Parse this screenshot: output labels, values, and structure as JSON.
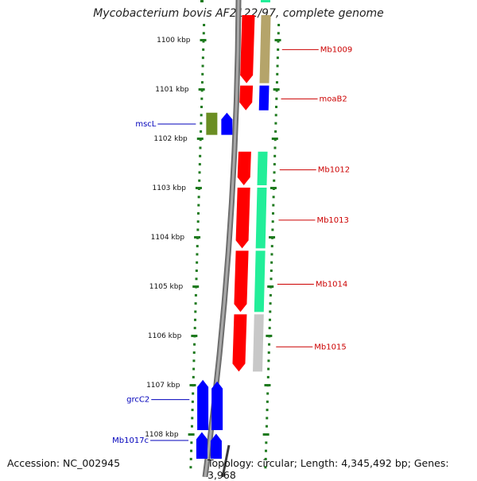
{
  "title": "Mycobacterium bovis AF2122/97, complete genome",
  "footer": {
    "accession": "Accession: NC_002945",
    "stats": "Topology: circular; Length: 4,345,492 bp; Genes: 3,968"
  },
  "colors": {
    "background": "#ffffff",
    "tick": "#1e7a1e",
    "backbone": "#8a8a8a",
    "forward_label": "#cc0000",
    "reverse_label": "#0000bb",
    "red_gene": "#ff0000",
    "blue_gene": "#0000ff",
    "olive_gene": "#6b8e23",
    "tan_block": "#b5a46a",
    "green_block": "#22ee99",
    "gray_block": "#c8c8c8"
  },
  "map": {
    "axis_unit": "kbp",
    "kbp_range": [
      1099.5,
      1108.5
    ],
    "ticks": [
      {
        "kbp": 1100,
        "label": "1100 kbp"
      },
      {
        "kbp": 1101,
        "label": "1101 kbp"
      },
      {
        "kbp": 1102,
        "label": "1102 kbp"
      },
      {
        "kbp": 1103,
        "label": "1103 kbp"
      },
      {
        "kbp": 1104,
        "label": "1104 kbp"
      },
      {
        "kbp": 1105,
        "label": "1105 kbp"
      },
      {
        "kbp": 1106,
        "label": "1106 kbp"
      },
      {
        "kbp": 1107,
        "label": "1107 kbp"
      },
      {
        "kbp": 1108,
        "label": "1108 kbp"
      }
    ],
    "reverse_features": [
      {
        "name": "mscL",
        "label": "mscL",
        "start_kbp": 1101.48,
        "end_kbp": 1101.93,
        "label_kbp": 1101.71
      },
      {
        "name": "grcC2",
        "label": "grcC2",
        "start_kbp": 1106.9,
        "end_kbp": 1107.92,
        "label_kbp": 1107.3
      },
      {
        "name": "Mb1017c",
        "label": "Mb1017c",
        "start_kbp": 1107.96,
        "end_kbp": 1108.5,
        "label_kbp": 1108.13
      }
    ],
    "forward_features": [
      {
        "name": "Mb1009",
        "label": "Mb1009",
        "start_kbp": 1099.5,
        "end_kbp": 1100.93,
        "label_kbp": 1100.2,
        "block": "tan"
      },
      {
        "name": "moaB2",
        "label": "moaB2",
        "start_kbp": 1100.93,
        "end_kbp": 1101.48,
        "label_kbp": 1101.2,
        "block": "blue"
      },
      {
        "name": "Mb1012",
        "label": "Mb1012",
        "start_kbp": 1102.27,
        "end_kbp": 1103.0,
        "label_kbp": 1102.64,
        "block": "green"
      },
      {
        "name": "Mb1013",
        "label": "Mb1013",
        "start_kbp": 1103.0,
        "end_kbp": 1104.28,
        "label_kbp": 1103.66,
        "block": "green"
      },
      {
        "name": "Mb1014",
        "label": "Mb1014",
        "start_kbp": 1104.28,
        "end_kbp": 1105.57,
        "label_kbp": 1104.96,
        "block": "green"
      },
      {
        "name": "Mb1015",
        "label": "Mb1015",
        "start_kbp": 1105.57,
        "end_kbp": 1106.78,
        "label_kbp": 1106.23,
        "block": "gray"
      }
    ]
  }
}
